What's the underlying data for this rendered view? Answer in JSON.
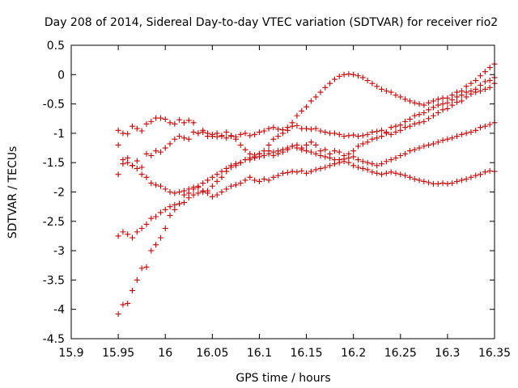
{
  "chart_data": {
    "type": "scatter",
    "title": "Day 208 of 2014, Sidereal Day-to-day VTEC variation (SDTVAR) for receiver rio2",
    "xlabel": "GPS time / hours",
    "ylabel": "SDTVAR / TECUs",
    "xlim": [
      15.9,
      16.35
    ],
    "ylim": [
      -4.5,
      0.5
    ],
    "xticks": [
      15.9,
      15.95,
      16,
      16.05,
      16.1,
      16.15,
      16.2,
      16.25,
      16.3,
      16.35
    ],
    "xtick_labels": [
      "15.9",
      "15.95",
      "16",
      "16.05",
      "16.1",
      "16.15",
      "16.2",
      "16.25",
      "16.3",
      "16.35"
    ],
    "yticks": [
      0.5,
      0,
      -0.5,
      -1,
      -1.5,
      -2,
      -2.5,
      -3,
      -3.5,
      -4,
      -4.5
    ],
    "ytick_labels": [
      "0.5",
      "0",
      "-0.5",
      "-1",
      "-1.5",
      "-2",
      "-2.5",
      "-3",
      "-3.5",
      "-4",
      "-4.5"
    ],
    "marker": "+",
    "color": "#d00000",
    "grid": false,
    "series": [
      {
        "name": "series-1",
        "x": [
          15.95,
          15.955,
          15.96,
          15.965,
          15.97,
          15.975,
          15.98,
          15.985,
          15.99,
          15.995,
          16.0,
          16.005,
          16.01,
          16.015,
          16.02,
          16.025,
          16.03,
          16.035,
          16.04,
          16.045,
          16.05,
          16.055,
          16.06,
          16.065,
          16.07,
          16.075,
          16.08,
          16.085,
          16.09,
          16.095,
          16.1,
          16.105,
          16.11,
          16.115,
          16.12,
          16.125,
          16.13,
          16.135,
          16.14,
          16.145,
          16.15,
          16.155,
          16.16,
          16.165,
          16.17,
          16.175,
          16.18,
          16.185,
          16.19,
          16.195,
          16.2,
          16.205,
          16.21,
          16.215,
          16.22,
          16.225,
          16.23,
          16.235,
          16.24,
          16.245,
          16.25,
          16.255,
          16.26,
          16.265,
          16.27,
          16.275,
          16.28,
          16.285,
          16.29,
          16.295,
          16.3,
          16.305,
          16.31,
          16.315,
          16.32,
          16.325,
          16.33,
          16.335,
          16.34,
          16.345,
          16.35
        ],
        "y": [
          -0.95,
          -1.0,
          -1.01,
          -0.88,
          -0.92,
          -0.96,
          -0.84,
          -0.8,
          -0.74,
          -0.74,
          -0.76,
          -0.82,
          -0.84,
          -0.77,
          -0.82,
          -0.78,
          -0.82,
          -1.0,
          -0.95,
          -1.0,
          -1.05,
          -1.0,
          -1.04,
          -0.98,
          -1.05,
          -1.06,
          -1.02,
          -1.0,
          -1.04,
          -1.02,
          -0.98,
          -0.96,
          -0.92,
          -0.9,
          -0.93,
          -0.94,
          -0.9,
          -0.88,
          -0.87,
          -0.92,
          -0.92,
          -0.93,
          -0.92,
          -0.96,
          -0.98,
          -1.0,
          -1.0,
          -1.02,
          -1.05,
          -1.04,
          -1.03,
          -1.05,
          -1.04,
          -1.02,
          -0.98,
          -0.97,
          -0.95,
          -0.98,
          -0.9,
          -0.88,
          -0.86,
          -0.8,
          -0.76,
          -0.7,
          -0.68,
          -0.65,
          -0.6,
          -0.56,
          -0.52,
          -0.5,
          -0.48,
          -0.43,
          -0.38,
          -0.35,
          -0.3,
          -0.28,
          -0.25,
          -0.18,
          -0.12,
          -0.1,
          -0.05
        ]
      },
      {
        "name": "series-2",
        "x": [
          15.95,
          15.955,
          15.96,
          15.965,
          15.97,
          15.975,
          15.98,
          15.985,
          15.99,
          15.995,
          16.0,
          16.005,
          16.01,
          16.015,
          16.02,
          16.025,
          16.03,
          16.035,
          16.04,
          16.045,
          16.05,
          16.055,
          16.06,
          16.065,
          16.07,
          16.075,
          16.08,
          16.085,
          16.09,
          16.095,
          16.1,
          16.105,
          16.11,
          16.115,
          16.12,
          16.125,
          16.13,
          16.135,
          16.14,
          16.145,
          16.15,
          16.155,
          16.16,
          16.165,
          16.17,
          16.175,
          16.18,
          16.185,
          16.19,
          16.195,
          16.2,
          16.205,
          16.21,
          16.215,
          16.22,
          16.225,
          16.23,
          16.235,
          16.24,
          16.245,
          16.25,
          16.255,
          16.26,
          16.265,
          16.27,
          16.275,
          16.28,
          16.285,
          16.29,
          16.295,
          16.3,
          16.305,
          16.31,
          16.315,
          16.32,
          16.325,
          16.33,
          16.335,
          16.34,
          16.345,
          16.35
        ],
        "y": [
          -1.2,
          -1.45,
          -1.42,
          -1.55,
          -1.47,
          -1.58,
          -1.35,
          -1.38,
          -1.3,
          -1.32,
          -1.25,
          -1.18,
          -1.1,
          -1.05,
          -1.08,
          -1.1,
          -0.98,
          -1.0,
          -0.98,
          -1.05,
          -1.02,
          -1.06,
          -1.05,
          -1.08,
          -1.04,
          -1.1,
          -1.2,
          -1.28,
          -1.35,
          -1.37,
          -1.35,
          -1.38,
          -1.3,
          -1.38,
          -1.35,
          -1.32,
          -1.28,
          -1.22,
          -1.2,
          -1.25,
          -1.2,
          -1.15,
          -1.2,
          -1.3,
          -1.28,
          -1.35,
          -1.3,
          -1.32,
          -1.38,
          -1.35,
          -1.3,
          -1.22,
          -1.18,
          -1.15,
          -1.1,
          -1.08,
          -1.05,
          -1.0,
          -1.02,
          -0.98,
          -0.95,
          -0.9,
          -0.88,
          -0.84,
          -0.82,
          -0.8,
          -0.75,
          -0.7,
          -0.65,
          -0.6,
          -0.58,
          -0.52,
          -0.47,
          -0.45,
          -0.38,
          -0.33,
          -0.3,
          -0.28,
          -0.25,
          -0.22,
          -0.15
        ]
      },
      {
        "name": "series-3",
        "x": [
          15.95,
          15.955,
          15.96,
          15.965,
          15.97,
          15.975,
          15.98,
          15.985,
          15.99,
          15.995,
          16.0,
          16.005,
          16.01,
          16.015,
          16.02,
          16.025,
          16.03,
          16.035,
          16.04,
          16.045,
          16.05,
          16.055,
          16.06,
          16.065,
          16.07,
          16.075,
          16.08,
          16.085,
          16.09,
          16.095,
          16.1,
          16.105,
          16.11,
          16.115,
          16.12,
          16.125,
          16.13,
          16.135,
          16.14,
          16.145,
          16.15,
          16.155,
          16.16,
          16.165,
          16.17,
          16.175,
          16.18,
          16.185,
          16.19,
          16.195,
          16.2,
          16.205,
          16.21,
          16.215,
          16.22,
          16.225,
          16.23,
          16.235,
          16.24,
          16.245,
          16.25,
          16.255,
          16.26,
          16.265,
          16.27,
          16.275,
          16.28,
          16.285,
          16.29,
          16.295,
          16.3,
          16.305,
          16.31,
          16.315,
          16.32,
          16.325,
          16.33,
          16.335,
          16.34,
          16.345,
          16.35
        ],
        "y": [
          -1.7,
          -1.52,
          -1.5,
          -1.55,
          -1.6,
          -1.7,
          -1.75,
          -1.85,
          -1.88,
          -1.9,
          -1.95,
          -2.0,
          -2.02,
          -2.0,
          -1.98,
          -1.95,
          -1.92,
          -1.9,
          -1.98,
          -2.02,
          -2.08,
          -2.05,
          -2.0,
          -1.95,
          -1.9,
          -1.88,
          -1.85,
          -1.8,
          -1.75,
          -1.8,
          -1.82,
          -1.78,
          -1.8,
          -1.75,
          -1.72,
          -1.68,
          -1.67,
          -1.65,
          -1.66,
          -1.64,
          -1.68,
          -1.65,
          -1.62,
          -1.6,
          -1.58,
          -1.55,
          -1.52,
          -1.5,
          -1.48,
          -1.5,
          -1.55,
          -1.58,
          -1.6,
          -1.62,
          -1.66,
          -1.68,
          -1.7,
          -1.68,
          -1.66,
          -1.68,
          -1.7,
          -1.72,
          -1.75,
          -1.78,
          -1.8,
          -1.82,
          -1.84,
          -1.86,
          -1.86,
          -1.85,
          -1.86,
          -1.85,
          -1.82,
          -1.8,
          -1.78,
          -1.75,
          -1.72,
          -1.7,
          -1.66,
          -1.64,
          -1.65
        ]
      },
      {
        "name": "series-4",
        "x": [
          15.95,
          15.955,
          15.96,
          15.965,
          15.97,
          15.975,
          15.98,
          15.985,
          15.99,
          15.995,
          16.0,
          16.005,
          16.01,
          16.015,
          16.02,
          16.025,
          16.03,
          16.035,
          16.04,
          16.045,
          16.05,
          16.055,
          16.06,
          16.065,
          16.07,
          16.075,
          16.08,
          16.085,
          16.09,
          16.095,
          16.1,
          16.105,
          16.11,
          16.115,
          16.12,
          16.125,
          16.13,
          16.135,
          16.14,
          16.145,
          16.15,
          16.155,
          16.16,
          16.165,
          16.17,
          16.175,
          16.18,
          16.185,
          16.19,
          16.195,
          16.2,
          16.205,
          16.21,
          16.215,
          16.22,
          16.225,
          16.23,
          16.235,
          16.24,
          16.245,
          16.25,
          16.255,
          16.26,
          16.265,
          16.27,
          16.275,
          16.28,
          16.285,
          16.29,
          16.295,
          16.3,
          16.305,
          16.31,
          16.315,
          16.32,
          16.325,
          16.33,
          16.335,
          16.34,
          16.345,
          16.35
        ],
        "y": [
          -2.75,
          -2.68,
          -2.72,
          -2.78,
          -2.68,
          -2.62,
          -2.55,
          -2.45,
          -2.42,
          -2.35,
          -2.3,
          -2.25,
          -2.22,
          -2.2,
          -2.18,
          -2.1,
          -2.05,
          -2.02,
          -2.0,
          -1.98,
          -1.9,
          -1.82,
          -1.75,
          -1.65,
          -1.58,
          -1.55,
          -1.5,
          -1.45,
          -1.42,
          -1.4,
          -1.35,
          -1.3,
          -1.2,
          -1.1,
          -1.05,
          -1.0,
          -0.95,
          -0.82,
          -0.7,
          -0.62,
          -0.55,
          -0.45,
          -0.38,
          -0.3,
          -0.22,
          -0.15,
          -0.08,
          -0.03,
          0.0,
          0.01,
          0.0,
          -0.02,
          -0.05,
          -0.1,
          -0.15,
          -0.2,
          -0.25,
          -0.28,
          -0.3,
          -0.35,
          -0.38,
          -0.42,
          -0.45,
          -0.48,
          -0.5,
          -0.52,
          -0.48,
          -0.45,
          -0.42,
          -0.4,
          -0.4,
          -0.35,
          -0.3,
          -0.28,
          -0.2,
          -0.15,
          -0.1,
          -0.02,
          0.05,
          0.12,
          0.18
        ]
      },
      {
        "name": "series-5",
        "x": [
          15.95,
          15.955,
          15.96,
          15.965,
          15.97,
          15.975,
          15.98,
          15.985,
          15.99,
          15.995,
          16.0,
          16.005,
          16.01,
          16.015,
          16.02,
          16.025,
          16.03,
          16.035,
          16.04,
          16.045,
          16.05,
          16.055,
          16.06,
          16.065,
          16.07,
          16.075,
          16.08,
          16.085,
          16.09,
          16.095,
          16.1,
          16.105,
          16.11,
          16.115,
          16.12,
          16.125,
          16.13,
          16.135,
          16.14,
          16.145,
          16.15,
          16.155,
          16.16,
          16.165,
          16.17,
          16.175,
          16.18,
          16.185,
          16.19,
          16.195,
          16.2,
          16.205,
          16.21,
          16.215,
          16.22,
          16.225,
          16.23,
          16.235,
          16.24,
          16.245,
          16.25,
          16.255,
          16.26,
          16.265,
          16.27,
          16.275,
          16.28,
          16.285,
          16.29,
          16.295,
          16.3,
          16.305,
          16.31,
          16.315,
          16.32,
          16.325,
          16.33,
          16.335,
          16.34,
          16.345,
          16.35
        ],
        "y": [
          -4.08,
          -3.92,
          -3.9,
          -3.68,
          -3.5,
          -3.3,
          -3.28,
          -3.0,
          -2.9,
          -2.78,
          -2.62,
          -2.4,
          -2.3,
          -2.2,
          -2.05,
          -2.02,
          -1.95,
          -1.92,
          -1.85,
          -1.8,
          -1.75,
          -1.7,
          -1.65,
          -1.6,
          -1.55,
          -1.52,
          -1.5,
          -1.45,
          -1.45,
          -1.42,
          -1.4,
          -1.38,
          -1.35,
          -1.32,
          -1.3,
          -1.28,
          -1.25,
          -1.22,
          -1.25,
          -1.28,
          -1.3,
          -1.32,
          -1.35,
          -1.38,
          -1.4,
          -1.42,
          -1.45,
          -1.45,
          -1.44,
          -1.42,
          -1.4,
          -1.45,
          -1.48,
          -1.5,
          -1.52,
          -1.55,
          -1.52,
          -1.48,
          -1.45,
          -1.42,
          -1.38,
          -1.35,
          -1.3,
          -1.28,
          -1.25,
          -1.22,
          -1.2,
          -1.18,
          -1.15,
          -1.12,
          -1.1,
          -1.08,
          -1.05,
          -1.02,
          -1.0,
          -0.98,
          -0.95,
          -0.9,
          -0.88,
          -0.85,
          -0.82
        ]
      }
    ]
  }
}
